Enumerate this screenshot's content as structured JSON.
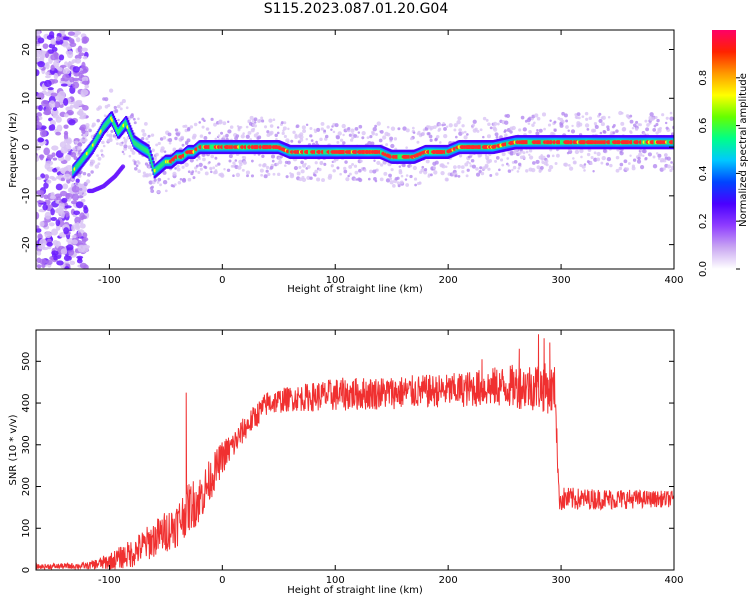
{
  "title": "S115.2023.087.01.20.G04",
  "chart_data": [
    {
      "type": "heatmap",
      "xlabel": "Height of straight line (km)",
      "ylabel": "Frequency (Hz)",
      "xlim": [
        -165,
        400
      ],
      "ylim": [
        -25,
        24
      ],
      "xticks": [
        -100,
        0,
        100,
        200,
        300,
        400
      ],
      "yticks": [
        -20,
        -10,
        0,
        10,
        20
      ],
      "grid": false,
      "colorbar": {
        "label": "Normalized spectral amplitude",
        "range": [
          0,
          1
        ],
        "ticks": [
          "0.0",
          "0.2",
          "0.4",
          "0.6",
          "0.8"
        ],
        "colors": [
          "#ffffff",
          "#c9a6f2",
          "#8f3dff",
          "#4a00ff",
          "#0044ff",
          "#00c8ff",
          "#00ff88",
          "#66ff00",
          "#ffff00",
          "#ff9900",
          "#ff2200",
          "#ff0066"
        ]
      },
      "ridge": {
        "name": "peak frequency",
        "x": [
          -132,
          -125,
          -115,
          -105,
          -98,
          -92,
          -85,
          -78,
          -72,
          -65,
          -60,
          -55,
          -50,
          -45,
          -40,
          -35,
          -30,
          -25,
          -20,
          -15,
          -10,
          0,
          20,
          40,
          50,
          60,
          80,
          100,
          120,
          130,
          140,
          150,
          160,
          170,
          180,
          190,
          200,
          210,
          220,
          240,
          260,
          270,
          280,
          300,
          320,
          340,
          360,
          370,
          380,
          400
        ],
        "y": [
          -5,
          -3,
          0,
          4,
          6,
          3,
          5,
          1,
          0,
          -1,
          -5,
          -4,
          -3,
          -3,
          -2,
          -2,
          -1,
          -1,
          0,
          0,
          0,
          0,
          0,
          0,
          0,
          -1,
          -1,
          -1,
          -1,
          -1,
          -1,
          -2,
          -2,
          -2,
          -1,
          -1,
          -1,
          0,
          0,
          0,
          1,
          1,
          1,
          1,
          1,
          1,
          1,
          1,
          1,
          1
        ]
      },
      "noise_region": {
        "x": [
          -165,
          -120
        ],
        "y": [
          -25,
          24
        ]
      }
    },
    {
      "type": "line",
      "xlabel": "Height of straight line (km)",
      "ylabel": "SNR (10 * v/v)",
      "xlim": [
        -165,
        400
      ],
      "ylim": [
        0,
        575
      ],
      "xticks": [
        -100,
        0,
        100,
        200,
        300,
        400
      ],
      "yticks": [
        0,
        100,
        200,
        300,
        400,
        500
      ],
      "grid": false,
      "color": "#f03030",
      "series": [
        {
          "envelope_x": [
            -165,
            -120,
            -100,
            -80,
            -60,
            -40,
            -30,
            -20,
            -10,
            0,
            10,
            20,
            30,
            40,
            60,
            100,
            150,
            200,
            250,
            280,
            295,
            298,
            300,
            320,
            350,
            380,
            400
          ],
          "envelope_y": [
            8,
            10,
            20,
            40,
            75,
            110,
            150,
            170,
            220,
            270,
            300,
            340,
            370,
            400,
            410,
            420,
            425,
            430,
            440,
            440,
            430,
            175,
            170,
            170,
            170,
            170,
            170
          ],
          "spread": [
            6,
            8,
            20,
            35,
            45,
            55,
            60,
            60,
            50,
            40,
            35,
            30,
            30,
            30,
            30,
            40,
            40,
            40,
            50,
            60,
            60,
            30,
            30,
            25,
            25,
            20,
            20
          ],
          "spikes": [
            {
              "x": -32,
              "y": 425
            },
            {
              "x": 280,
              "y": 565
            },
            {
              "x": 285,
              "y": 555
            },
            {
              "x": 290,
              "y": 545
            },
            {
              "x": 263,
              "y": 530
            },
            {
              "x": 230,
              "y": 505
            }
          ]
        }
      ]
    }
  ]
}
